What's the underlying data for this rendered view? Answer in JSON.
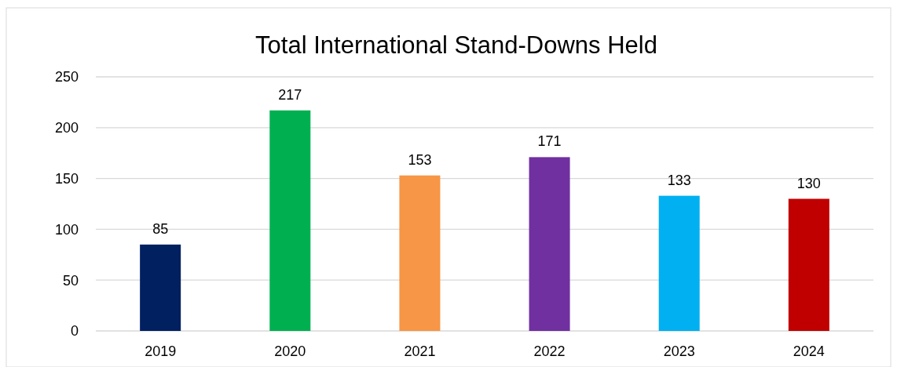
{
  "chart_data": {
    "type": "bar",
    "title": "Total International Stand-Downs Held",
    "categories": [
      "2019",
      "2020",
      "2021",
      "2022",
      "2023",
      "2024"
    ],
    "values": [
      85,
      217,
      153,
      171,
      133,
      130
    ],
    "colors": [
      "#002060",
      "#00b050",
      "#f79646",
      "#7030a0",
      "#00b0f0",
      "#c00000"
    ],
    "ylim": [
      0,
      250
    ],
    "yticks": [
      0,
      50,
      100,
      150,
      200,
      250
    ],
    "grid": "y",
    "data_labels": true
  }
}
